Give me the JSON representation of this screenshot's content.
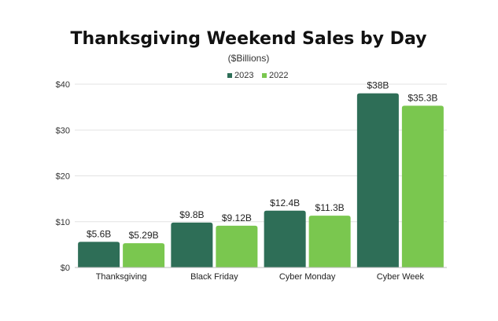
{
  "chart_data": {
    "type": "bar",
    "title": "Thanksgiving Weekend Sales by Day",
    "subtitle": "($Billions)",
    "xlabel": "",
    "ylabel": "",
    "categories": [
      "Thanksgiving",
      "Black Friday",
      "Cyber Monday",
      "Cyber Week"
    ],
    "series": [
      {
        "name": "2023",
        "color": "#2e6e57",
        "values": [
          5.6,
          9.8,
          12.4,
          38
        ],
        "labels": [
          "$5.6B",
          "$9.8B",
          "$12.4B",
          "$38B"
        ]
      },
      {
        "name": "2022",
        "color": "#7ac74f",
        "values": [
          5.29,
          9.12,
          11.3,
          35.3
        ],
        "labels": [
          "$5.29B",
          "$9.12B",
          "$11.3B",
          "$35.3B"
        ]
      }
    ],
    "ylim": [
      0,
      40
    ],
    "yticks": [
      0,
      10,
      20,
      30,
      40
    ],
    "ytick_labels": [
      "$0",
      "$10",
      "$20",
      "$30",
      "$40"
    ],
    "grid": true,
    "legend_position": "top-center"
  }
}
